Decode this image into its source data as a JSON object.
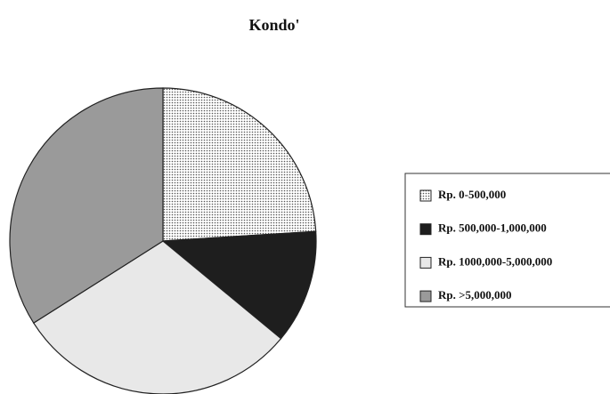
{
  "chart_data": {
    "type": "pie",
    "title": "Kondo'",
    "categories": [
      "Rp. 0-500,000",
      "Rp. 500,000-1,000,000",
      "Rp. 1000,000-5,000,000",
      "Rp. >5,000,000"
    ],
    "values": [
      24,
      12,
      30,
      34
    ],
    "colors": [
      "#555555",
      "#1e1e1e",
      "#e8e8e8",
      "#9a9a9a"
    ],
    "patterns": [
      "dots",
      "solid",
      "solid",
      "solid"
    ],
    "legend": "right"
  }
}
